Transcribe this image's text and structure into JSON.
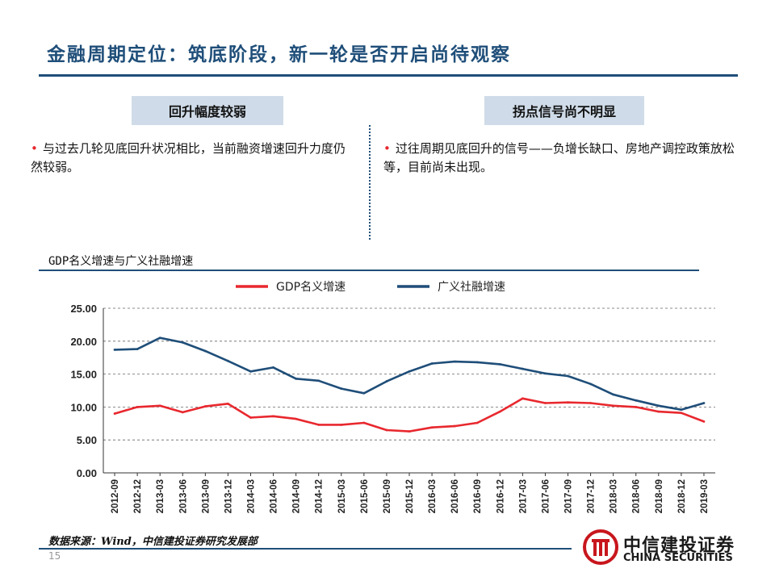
{
  "header": {
    "title": "金融周期定位：筑底阶段，新一轮是否开启尚待观察"
  },
  "left_section": {
    "heading": "回升幅度较弱",
    "bullet": "与过去几轮见底回升状况相比，当前融资增速回升力度仍然较弱。"
  },
  "right_section": {
    "heading": "拐点信号尚不明显",
    "bullet": "过往周期见底回升的信号——负增长缺口、房地产调控政策放松等，目前尚未出现。"
  },
  "chart_heading": "GDP名义增速与广义社融增速",
  "footer": {
    "source": "数据来源：Wind，中信建投证券研究发展部",
    "page_number": "15",
    "logo_cn": "中信建投证券",
    "logo_en": "CHINA SECURITIES"
  },
  "chart_data": {
    "type": "line",
    "title": "",
    "xlabel": "",
    "ylabel": "",
    "ylim": [
      0,
      25
    ],
    "yticks": [
      "0.00",
      "5.00",
      "10.00",
      "15.00",
      "20.00",
      "25.00"
    ],
    "grid": "horizontal dashed",
    "legend_position": "top",
    "categories": [
      "2012-09",
      "2012-12",
      "2013-03",
      "2013-06",
      "2013-09",
      "2013-12",
      "2014-03",
      "2014-06",
      "2014-09",
      "2014-12",
      "2015-03",
      "2015-06",
      "2015-09",
      "2015-12",
      "2016-03",
      "2016-06",
      "2016-09",
      "2016-12",
      "2017-03",
      "2017-06",
      "2017-09",
      "2017-12",
      "2018-03",
      "2018-06",
      "2018-09",
      "2018-12",
      "2019-03"
    ],
    "series": [
      {
        "name": "GDP名义增速",
        "color": "#e8282e",
        "values": [
          9.0,
          10.0,
          10.2,
          9.2,
          10.1,
          10.5,
          8.4,
          8.6,
          8.2,
          7.3,
          7.3,
          7.6,
          6.5,
          6.3,
          6.9,
          7.1,
          7.6,
          9.3,
          11.3,
          10.6,
          10.7,
          10.6,
          10.2,
          10.0,
          9.3,
          9.1,
          7.8
        ]
      },
      {
        "name": "广义社融增速",
        "color": "#1f4e79",
        "values": [
          18.7,
          18.8,
          20.5,
          19.8,
          18.5,
          17.0,
          15.4,
          16.0,
          14.3,
          14.0,
          12.8,
          12.1,
          13.9,
          15.4,
          16.6,
          16.9,
          16.8,
          16.5,
          15.8,
          15.1,
          14.7,
          13.5,
          11.9,
          11.0,
          10.2,
          9.6,
          10.6
        ]
      }
    ]
  }
}
